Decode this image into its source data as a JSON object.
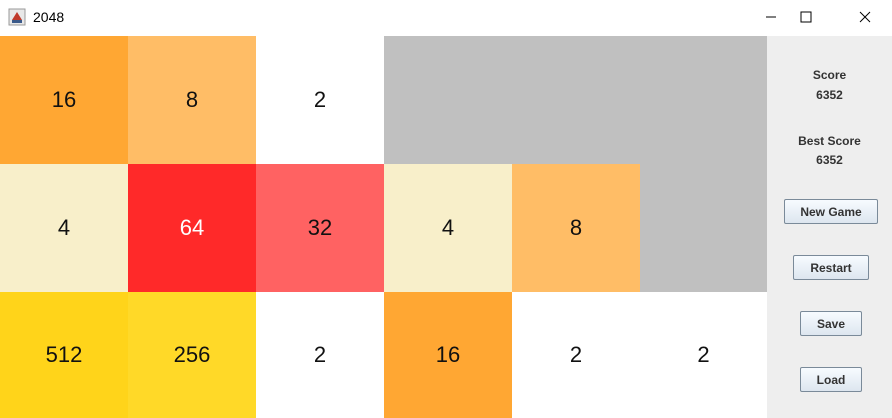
{
  "window": {
    "title": "2048"
  },
  "board": {
    "empty_color": "#c0c0c0",
    "tiles": [
      {
        "value": "16",
        "color": "#ffa733",
        "text_color": "#111111"
      },
      {
        "value": "8",
        "color": "#ffbd66",
        "text_color": "#111111"
      },
      {
        "value": "2",
        "color": "#ffffff",
        "text_color": "#111111"
      },
      {
        "value": "",
        "color": "#c0c0c0",
        "text_color": "#111111"
      },
      {
        "value": "",
        "color": "#c0c0c0",
        "text_color": "#111111"
      },
      {
        "value": "",
        "color": "#c0c0c0",
        "text_color": "#111111"
      },
      {
        "value": "4",
        "color": "#f8efca",
        "text_color": "#111111"
      },
      {
        "value": "64",
        "color": "#ff2929",
        "text_color": "#ffffff"
      },
      {
        "value": "32",
        "color": "#ff6262",
        "text_color": "#111111"
      },
      {
        "value": "4",
        "color": "#f8efca",
        "text_color": "#111111"
      },
      {
        "value": "8",
        "color": "#ffbd66",
        "text_color": "#111111"
      },
      {
        "value": "",
        "color": "#c0c0c0",
        "text_color": "#111111"
      },
      {
        "value": "512",
        "color": "#ffd41a",
        "text_color": "#111111"
      },
      {
        "value": "256",
        "color": "#ffd928",
        "text_color": "#111111"
      },
      {
        "value": "2",
        "color": "#ffffff",
        "text_color": "#111111"
      },
      {
        "value": "16",
        "color": "#ffa733",
        "text_color": "#111111"
      },
      {
        "value": "2",
        "color": "#ffffff",
        "text_color": "#111111"
      },
      {
        "value": "2",
        "color": "#ffffff",
        "text_color": "#111111"
      }
    ]
  },
  "panel": {
    "score_label": "Score",
    "score_value": "6352",
    "best_label": "Best Score",
    "best_value": "6352",
    "new_game": "New Game",
    "restart": "Restart",
    "save": "Save",
    "load": "Load"
  },
  "icons": {
    "app": "java-cup-icon",
    "minimize": "minimize-icon",
    "maximize": "maximize-icon",
    "close": "close-icon"
  }
}
